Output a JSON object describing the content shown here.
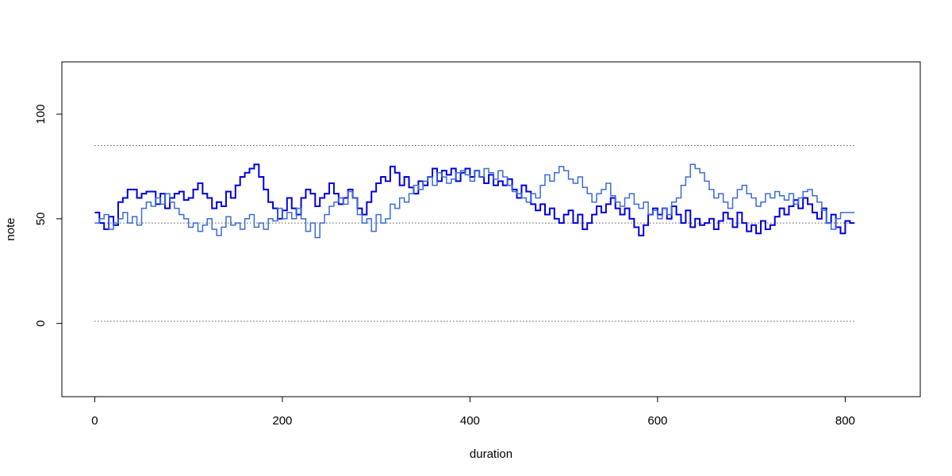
{
  "chart_data": {
    "type": "line",
    "step": true,
    "title": "",
    "xlabel": "duration",
    "ylabel": "note",
    "xlim": [
      -35,
      880
    ],
    "ylim": [
      -35,
      125
    ],
    "x_ticks": [
      0,
      200,
      400,
      600,
      800
    ],
    "y_ticks": [
      0,
      50,
      100
    ],
    "grid": false,
    "legend": "none",
    "reference_lines": [
      {
        "y": 85,
        "x_range": [
          0,
          810
        ],
        "style": "dotted",
        "color": "#000000"
      },
      {
        "y": 48,
        "x_range": [
          0,
          810
        ],
        "style": "dotted",
        "color": "#000000"
      },
      {
        "y": 1,
        "x_range": [
          0,
          810
        ],
        "style": "dotted",
        "color": "#000000"
      }
    ],
    "series": [
      {
        "color": "#0000dd",
        "line_width": 2,
        "x": [
          0,
          5,
          10,
          15,
          20,
          25,
          30,
          35,
          40,
          45,
          50,
          55,
          60,
          65,
          70,
          75,
          80,
          85,
          90,
          95,
          100,
          105,
          110,
          115,
          120,
          125,
          130,
          135,
          140,
          145,
          150,
          155,
          160,
          165,
          170,
          175,
          180,
          185,
          190,
          195,
          200,
          205,
          210,
          215,
          220,
          225,
          230,
          235,
          240,
          245,
          250,
          255,
          260,
          265,
          270,
          275,
          280,
          285,
          290,
          295,
          300,
          305,
          310,
          315,
          320,
          325,
          330,
          335,
          340,
          345,
          350,
          355,
          360,
          365,
          370,
          375,
          380,
          385,
          390,
          395,
          400,
          405,
          410,
          415,
          420,
          425,
          430,
          435,
          440,
          445,
          450,
          455,
          460,
          465,
          470,
          475,
          480,
          485,
          490,
          495,
          500,
          505,
          510,
          515,
          520,
          525,
          530,
          535,
          540,
          545,
          550,
          555,
          560,
          565,
          570,
          575,
          580,
          585,
          590,
          595,
          600,
          605,
          610,
          615,
          620,
          625,
          630,
          635,
          640,
          645,
          650,
          655,
          660,
          665,
          670,
          675,
          680,
          685,
          690,
          695,
          700,
          705,
          710,
          715,
          720,
          725,
          730,
          735,
          740,
          745,
          750,
          755,
          760,
          765,
          770,
          775,
          780,
          785,
          790,
          795,
          800,
          805,
          810
        ],
        "y": [
          53,
          48,
          45,
          51,
          47,
          58,
          60,
          64,
          64,
          60,
          62,
          63,
          63,
          57,
          62,
          55,
          60,
          62,
          63,
          59,
          60,
          64,
          67,
          62,
          60,
          55,
          58,
          56,
          63,
          60,
          66,
          70,
          72,
          74,
          76,
          70,
          64,
          58,
          55,
          50,
          54,
          60,
          55,
          52,
          60,
          64,
          62,
          56,
          60,
          62,
          67,
          62,
          57,
          60,
          64,
          60,
          55,
          52,
          58,
          63,
          67,
          70,
          68,
          75,
          72,
          66,
          70,
          65,
          62,
          68,
          66,
          70,
          74,
          68,
          73,
          71,
          74,
          68,
          72,
          74,
          70,
          73,
          70,
          67,
          71,
          66,
          68,
          66,
          69,
          64,
          60,
          66,
          63,
          57,
          54,
          57,
          52,
          55,
          50,
          48,
          52,
          54,
          48,
          52,
          45,
          48,
          52,
          56,
          53,
          57,
          60,
          55,
          52,
          55,
          50,
          46,
          42,
          47,
          52,
          55,
          52,
          55,
          50,
          56,
          52,
          48,
          54,
          46,
          50,
          47,
          48,
          50,
          45,
          49,
          53,
          50,
          46,
          53,
          48,
          44,
          47,
          43,
          49,
          45,
          47,
          51,
          55,
          52,
          56,
          59,
          55,
          60,
          57,
          53,
          50,
          55,
          48,
          52,
          46,
          43,
          49,
          48,
          48
        ]
      },
      {
        "color": "#3a6bd6",
        "line_width": 1.5,
        "x": [
          0,
          5,
          10,
          15,
          20,
          25,
          30,
          35,
          40,
          45,
          50,
          55,
          60,
          65,
          70,
          75,
          80,
          85,
          90,
          95,
          100,
          105,
          110,
          115,
          120,
          125,
          130,
          135,
          140,
          145,
          150,
          155,
          160,
          165,
          170,
          175,
          180,
          185,
          190,
          195,
          200,
          205,
          210,
          215,
          220,
          225,
          230,
          235,
          240,
          245,
          250,
          255,
          260,
          265,
          270,
          275,
          280,
          285,
          290,
          295,
          300,
          305,
          310,
          315,
          320,
          325,
          330,
          335,
          340,
          345,
          350,
          355,
          360,
          365,
          370,
          375,
          380,
          385,
          390,
          395,
          400,
          405,
          410,
          415,
          420,
          425,
          430,
          435,
          440,
          445,
          450,
          455,
          460,
          465,
          470,
          475,
          480,
          485,
          490,
          495,
          500,
          505,
          510,
          515,
          520,
          525,
          530,
          535,
          540,
          545,
          550,
          555,
          560,
          565,
          570,
          575,
          580,
          585,
          590,
          595,
          600,
          605,
          610,
          615,
          620,
          625,
          630,
          635,
          640,
          645,
          650,
          655,
          660,
          665,
          670,
          675,
          680,
          685,
          690,
          695,
          700,
          705,
          710,
          715,
          720,
          725,
          730,
          735,
          740,
          745,
          750,
          755,
          760,
          765,
          770,
          775,
          780,
          785,
          790,
          795,
          800,
          805,
          810
        ],
        "y": [
          48,
          50,
          52,
          45,
          48,
          50,
          53,
          48,
          51,
          47,
          55,
          58,
          56,
          60,
          57,
          62,
          58,
          55,
          52,
          50,
          46,
          48,
          44,
          47,
          50,
          45,
          42,
          46,
          51,
          47,
          48,
          45,
          50,
          52,
          46,
          48,
          45,
          50,
          49,
          55,
          50,
          53,
          50,
          55,
          50,
          44,
          48,
          41,
          48,
          52,
          56,
          58,
          60,
          57,
          63,
          60,
          52,
          48,
          50,
          44,
          52,
          48,
          50,
          57,
          55,
          60,
          58,
          62,
          66,
          64,
          68,
          70,
          66,
          72,
          70,
          67,
          69,
          72,
          73,
          71,
          68,
          73,
          70,
          74,
          72,
          69,
          73,
          70,
          66,
          63,
          62,
          60,
          58,
          62,
          60,
          66,
          71,
          68,
          72,
          75,
          73,
          69,
          67,
          70,
          65,
          62,
          58,
          62,
          64,
          67,
          61,
          58,
          56,
          60,
          62,
          57,
          55,
          58,
          52,
          54,
          50,
          55,
          52,
          58,
          60,
          66,
          70,
          76,
          74,
          72,
          68,
          64,
          60,
          62,
          58,
          55,
          60,
          64,
          66,
          62,
          60,
          56,
          58,
          62,
          60,
          63,
          61,
          59,
          62,
          57,
          60,
          63,
          64,
          61,
          58,
          54,
          48,
          45,
          50,
          53,
          53,
          53,
          53
        ]
      }
    ]
  }
}
